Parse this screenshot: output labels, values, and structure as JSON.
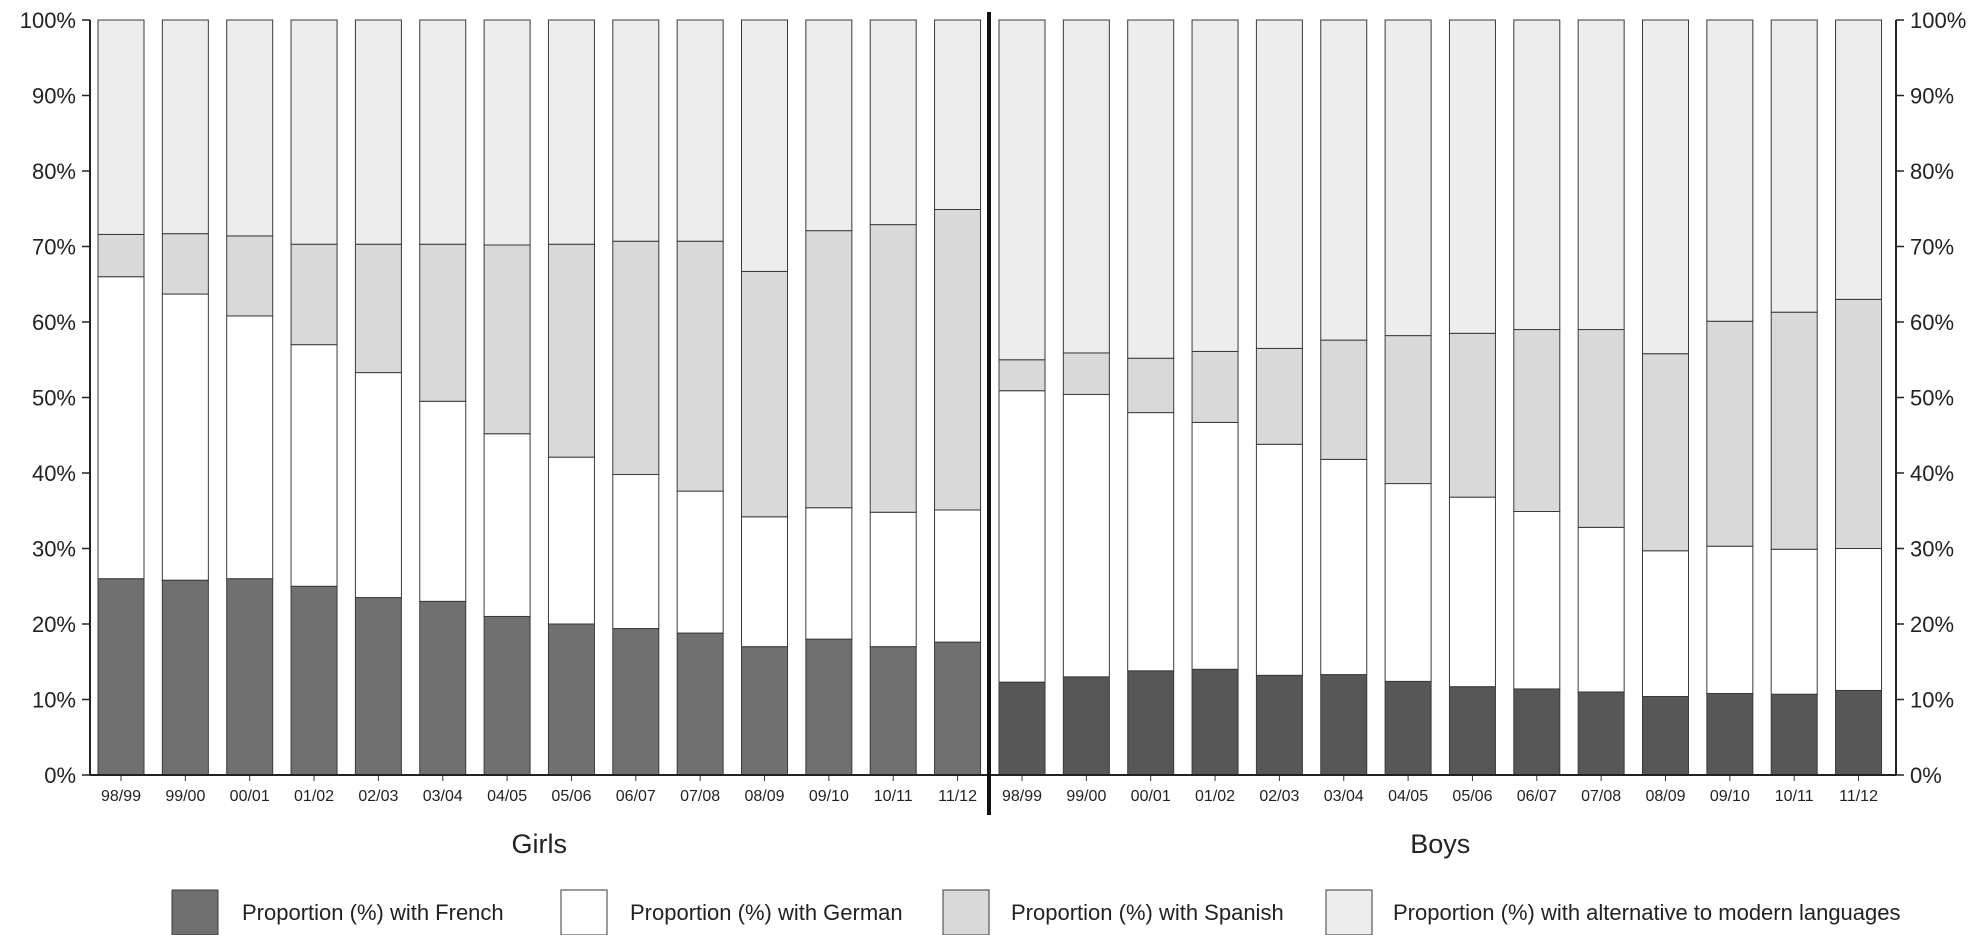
{
  "chart_data": {
    "type": "bar",
    "stacked": true,
    "percent_stacked": true,
    "y_ticks": [
      "0%",
      "10%",
      "20%",
      "30%",
      "40%",
      "50%",
      "60%",
      "70%",
      "80%",
      "90%",
      "100%"
    ],
    "ylim": [
      0,
      100
    ],
    "grid": false,
    "legend_position": "bottom",
    "series_names": [
      "Proportion (%) with French",
      "Proportion (%) with German",
      "Proportion (%) with Spanish",
      "Proportion (%) with alternative to modern languages"
    ],
    "colors": {
      "french_girls": "#707070",
      "french_boys": "#575757",
      "german": "#ffffff",
      "spanish": "#d9d9d9",
      "alternative": "#ededed",
      "legend_french": "#707070"
    },
    "groups": [
      {
        "name": "Girls",
        "categories": [
          "98/99",
          "99/00",
          "00/01",
          "01/02",
          "02/03",
          "03/04",
          "04/05",
          "05/06",
          "06/07",
          "07/08",
          "08/09",
          "09/10",
          "10/11",
          "11/12"
        ],
        "series": [
          {
            "name": "Proportion (%) with French",
            "values": [
              26,
              25.8,
              26,
              25,
              23.5,
              23,
              21,
              20,
              19.4,
              18.8,
              17,
              18,
              17,
              17.6
            ]
          },
          {
            "name": "Proportion (%) with German",
            "values": [
              40,
              37.9,
              34.8,
              32,
              29.8,
              26.5,
              24.2,
              22.1,
              20.4,
              18.8,
              17.2,
              17.4,
              17.8,
              17.5
            ]
          },
          {
            "name": "Proportion (%) with Spanish",
            "values": [
              5.6,
              8,
              10.6,
              13.3,
              17,
              20.8,
              25,
              28.2,
              30.9,
              33.1,
              32.5,
              36.7,
              38.1,
              39.8
            ]
          },
          {
            "name": "Proportion (%) with alternative to modern languages",
            "values": [
              28.4,
              28.3,
              28.6,
              29.7,
              29.7,
              29.7,
              29.8,
              29.7,
              29.3,
              29.3,
              33.3,
              27.9,
              27.1,
              25.1
            ]
          }
        ]
      },
      {
        "name": "Boys",
        "categories": [
          "98/99",
          "99/00",
          "00/01",
          "01/02",
          "02/03",
          "03/04",
          "04/05",
          "05/06",
          "06/07",
          "07/08",
          "08/09",
          "09/10",
          "10/11",
          "11/12"
        ],
        "series": [
          {
            "name": "Proportion (%) with French",
            "values": [
              12.3,
              13,
              13.8,
              14,
              13.2,
              13.3,
              12.4,
              11.7,
              11.4,
              11,
              10.4,
              10.8,
              10.7,
              11.2
            ]
          },
          {
            "name": "Proportion (%) with German",
            "values": [
              38.6,
              37.4,
              34.2,
              32.7,
              30.6,
              28.5,
              26.2,
              25.1,
              23.5,
              21.8,
              19.3,
              19.5,
              19.2,
              18.8
            ]
          },
          {
            "name": "Proportion (%) with Spanish",
            "values": [
              4.1,
              5.5,
              7.2,
              9.4,
              12.7,
              15.8,
              19.6,
              21.7,
              24.1,
              26.2,
              26.1,
              29.8,
              31.4,
              33
            ]
          },
          {
            "name": "Proportion (%) with alternative to modern languages",
            "values": [
              45,
              44.1,
              44.8,
              43.9,
              43.5,
              42.4,
              41.8,
              41.5,
              41,
              41,
              44.2,
              39.9,
              38.7,
              37
            ]
          }
        ]
      }
    ]
  }
}
